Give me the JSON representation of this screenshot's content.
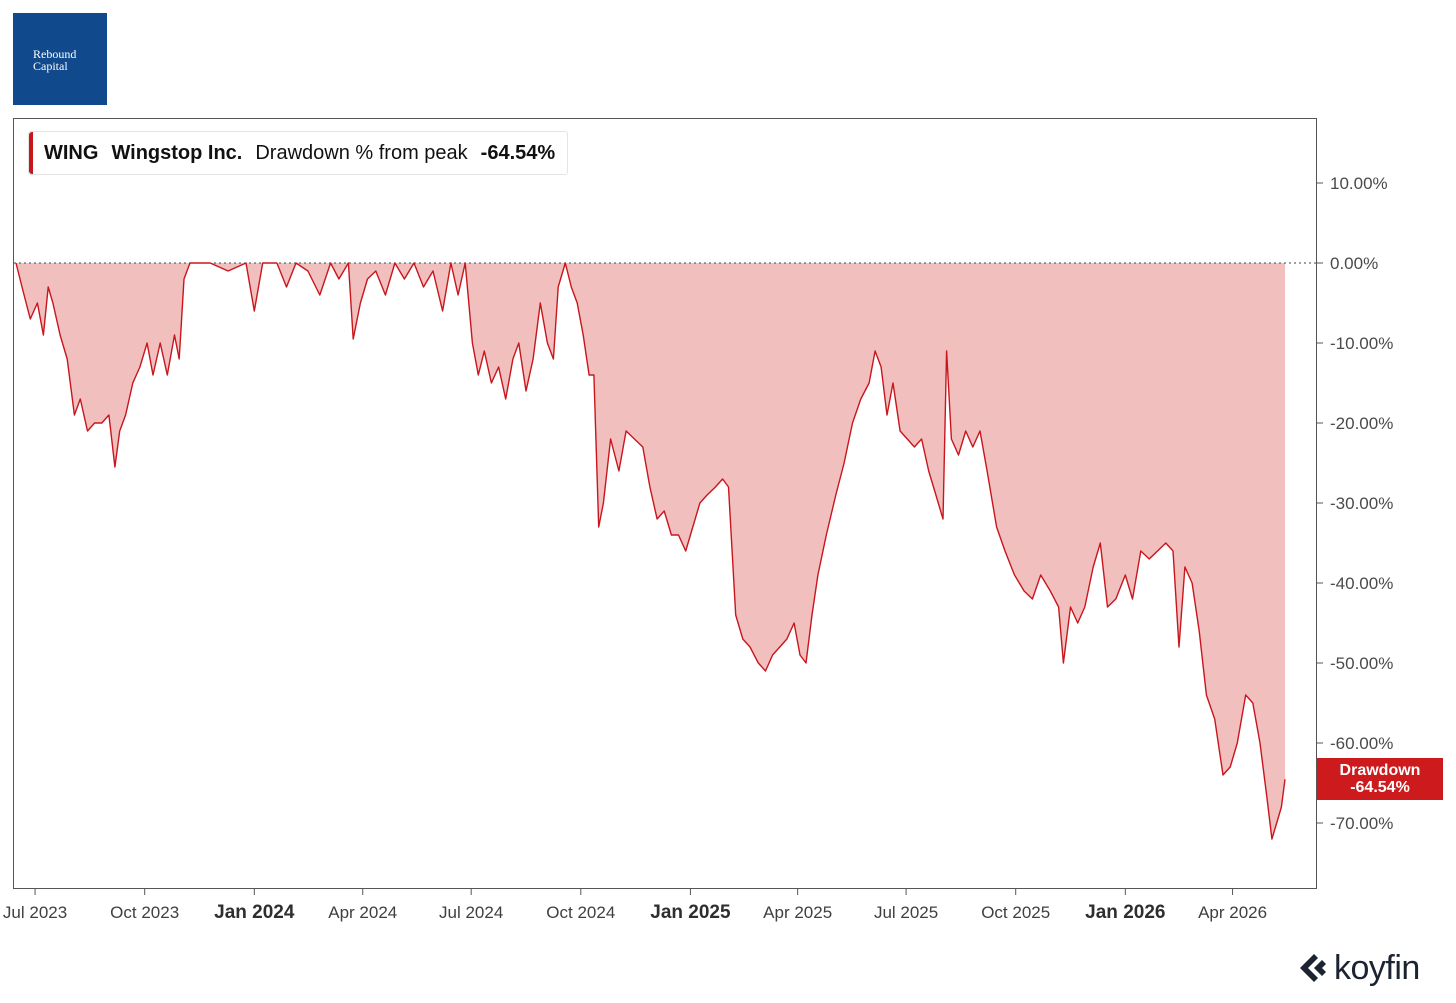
{
  "logo": {
    "line1": "Rebound",
    "line2": "Capital",
    "color": "#114a8c"
  },
  "legend": {
    "ticker": "WING",
    "name": "Wingstop Inc.",
    "metric": "Drawdown % from peak",
    "value": "-64.54%"
  },
  "last_tag": {
    "label": "Drawdown",
    "value": "-64.54%"
  },
  "brand": {
    "name": "koyfin",
    "icon": "koyfin-logo-icon"
  },
  "colors": {
    "line": "#c8161d",
    "fill": "#f2bfbf",
    "tag": "#cc1a1d"
  },
  "chart_data": {
    "type": "area",
    "series": [
      {
        "name": "Drawdown % from peak",
        "color": "#c8161d"
      }
    ],
    "x_start": "2023-06-15",
    "x_end": "2026-05-15",
    "ylim": [
      -78,
      17
    ],
    "yticks": [
      10,
      0,
      -10,
      -20,
      -30,
      -40,
      -50,
      -60,
      -70
    ],
    "ytick_labels": [
      "10.00%",
      "0.00%",
      "-10.00%",
      "-20.00%",
      "-30.00%",
      "-40.00%",
      "-50.00%",
      "-60.00%",
      "-70.00%"
    ],
    "xticks": [
      {
        "date": "2023-07-01",
        "label": "Jul 2023",
        "bold": false
      },
      {
        "date": "2023-10-01",
        "label": "Oct 2023",
        "bold": false
      },
      {
        "date": "2024-01-01",
        "label": "Jan 2024",
        "bold": true
      },
      {
        "date": "2024-04-01",
        "label": "Apr 2024",
        "bold": false
      },
      {
        "date": "2024-07-01",
        "label": "Jul 2024",
        "bold": false
      },
      {
        "date": "2024-10-01",
        "label": "Oct 2024",
        "bold": false
      },
      {
        "date": "2025-01-01",
        "label": "Jan 2025",
        "bold": true
      },
      {
        "date": "2025-04-01",
        "label": "Apr 2025",
        "bold": false
      },
      {
        "date": "2025-07-01",
        "label": "Jul 2025",
        "bold": false
      },
      {
        "date": "2025-10-01",
        "label": "Oct 2025",
        "bold": false
      },
      {
        "date": "2026-01-01",
        "label": "Jan 2026",
        "bold": true
      },
      {
        "date": "2026-04-01",
        "label": "Apr 2026",
        "bold": false
      }
    ],
    "reference_line": 0,
    "points": [
      [
        "2023-06-15",
        0
      ],
      [
        "2023-06-20",
        -3
      ],
      [
        "2023-06-27",
        -7
      ],
      [
        "2023-07-03",
        -5
      ],
      [
        "2023-07-08",
        -9
      ],
      [
        "2023-07-12",
        -3
      ],
      [
        "2023-07-16",
        -5
      ],
      [
        "2023-07-22",
        -9
      ],
      [
        "2023-07-28",
        -12
      ],
      [
        "2023-08-03",
        -19
      ],
      [
        "2023-08-08",
        -17
      ],
      [
        "2023-08-14",
        -21
      ],
      [
        "2023-08-20",
        -20
      ],
      [
        "2023-08-26",
        -20
      ],
      [
        "2023-09-01",
        -19
      ],
      [
        "2023-09-06",
        -25.5
      ],
      [
        "2023-09-10",
        -21
      ],
      [
        "2023-09-15",
        -19
      ],
      [
        "2023-09-21",
        -15
      ],
      [
        "2023-09-27",
        -13
      ],
      [
        "2023-10-03",
        -10
      ],
      [
        "2023-10-08",
        -14
      ],
      [
        "2023-10-14",
        -10
      ],
      [
        "2023-10-20",
        -14
      ],
      [
        "2023-10-26",
        -9
      ],
      [
        "2023-10-30",
        -12
      ],
      [
        "2023-11-03",
        -2
      ],
      [
        "2023-11-08",
        0
      ],
      [
        "2023-11-25",
        0
      ],
      [
        "2023-12-10",
        -1
      ],
      [
        "2023-12-25",
        0
      ],
      [
        "2024-01-01",
        -6
      ],
      [
        "2024-01-08",
        0
      ],
      [
        "2024-01-20",
        0
      ],
      [
        "2024-01-28",
        -3
      ],
      [
        "2024-02-05",
        0
      ],
      [
        "2024-02-15",
        -1
      ],
      [
        "2024-02-25",
        -4
      ],
      [
        "2024-03-05",
        0
      ],
      [
        "2024-03-12",
        -2
      ],
      [
        "2024-03-20",
        0
      ],
      [
        "2024-03-24",
        -9.5
      ],
      [
        "2024-03-30",
        -5
      ],
      [
        "2024-04-05",
        -2
      ],
      [
        "2024-04-12",
        -1
      ],
      [
        "2024-04-20",
        -4
      ],
      [
        "2024-04-28",
        0
      ],
      [
        "2024-05-06",
        -2
      ],
      [
        "2024-05-14",
        0
      ],
      [
        "2024-05-22",
        -3
      ],
      [
        "2024-05-30",
        -1
      ],
      [
        "2024-06-07",
        -6
      ],
      [
        "2024-06-14",
        0
      ],
      [
        "2024-06-20",
        -4
      ],
      [
        "2024-06-26",
        0
      ],
      [
        "2024-07-02",
        -10
      ],
      [
        "2024-07-07",
        -14
      ],
      [
        "2024-07-12",
        -11
      ],
      [
        "2024-07-18",
        -15
      ],
      [
        "2024-07-24",
        -13
      ],
      [
        "2024-07-30",
        -17
      ],
      [
        "2024-08-05",
        -12
      ],
      [
        "2024-08-10",
        -10
      ],
      [
        "2024-08-16",
        -16
      ],
      [
        "2024-08-22",
        -12
      ],
      [
        "2024-08-28",
        -5
      ],
      [
        "2024-09-03",
        -10
      ],
      [
        "2024-09-08",
        -12
      ],
      [
        "2024-09-12",
        -3
      ],
      [
        "2024-09-18",
        0
      ],
      [
        "2024-09-23",
        -3
      ],
      [
        "2024-09-28",
        -5
      ],
      [
        "2024-10-03",
        -9
      ],
      [
        "2024-10-08",
        -14
      ],
      [
        "2024-10-12",
        -14
      ],
      [
        "2024-10-16",
        -33
      ],
      [
        "2024-10-20",
        -30
      ],
      [
        "2024-10-26",
        -22
      ],
      [
        "2024-11-02",
        -26
      ],
      [
        "2024-11-08",
        -21
      ],
      [
        "2024-11-15",
        -22
      ],
      [
        "2024-11-22",
        -23
      ],
      [
        "2024-11-28",
        -28
      ],
      [
        "2024-12-04",
        -32
      ],
      [
        "2024-12-10",
        -31
      ],
      [
        "2024-12-16",
        -34
      ],
      [
        "2024-12-22",
        -34
      ],
      [
        "2024-12-28",
        -36
      ],
      [
        "2025-01-03",
        -33
      ],
      [
        "2025-01-09",
        -30
      ],
      [
        "2025-01-15",
        -29
      ],
      [
        "2025-01-22",
        -28
      ],
      [
        "2025-01-28",
        -27
      ],
      [
        "2025-02-02",
        -28
      ],
      [
        "2025-02-08",
        -44
      ],
      [
        "2025-02-14",
        -47
      ],
      [
        "2025-02-20",
        -48
      ],
      [
        "2025-02-27",
        -50
      ],
      [
        "2025-03-05",
        -51
      ],
      [
        "2025-03-11",
        -49
      ],
      [
        "2025-03-17",
        -48
      ],
      [
        "2025-03-23",
        -47
      ],
      [
        "2025-03-29",
        -45
      ],
      [
        "2025-04-03",
        -49
      ],
      [
        "2025-04-08",
        -50
      ],
      [
        "2025-04-13",
        -44
      ],
      [
        "2025-04-18",
        -39
      ],
      [
        "2025-04-25",
        -34
      ],
      [
        "2025-05-03",
        -29
      ],
      [
        "2025-05-10",
        -25
      ],
      [
        "2025-05-17",
        -20
      ],
      [
        "2025-05-24",
        -17
      ],
      [
        "2025-05-31",
        -15
      ],
      [
        "2025-06-05",
        -11
      ],
      [
        "2025-06-10",
        -13
      ],
      [
        "2025-06-15",
        -19
      ],
      [
        "2025-06-20",
        -15
      ],
      [
        "2025-06-26",
        -21
      ],
      [
        "2025-07-02",
        -22
      ],
      [
        "2025-07-08",
        -23
      ],
      [
        "2025-07-14",
        -22
      ],
      [
        "2025-07-20",
        -26
      ],
      [
        "2025-07-26",
        -29
      ],
      [
        "2025-08-01",
        -32
      ],
      [
        "2025-08-04",
        -11
      ],
      [
        "2025-08-08",
        -22
      ],
      [
        "2025-08-14",
        -24
      ],
      [
        "2025-08-20",
        -21
      ],
      [
        "2025-08-26",
        -23
      ],
      [
        "2025-09-01",
        -21
      ],
      [
        "2025-09-07",
        -26
      ],
      [
        "2025-09-15",
        -33
      ],
      [
        "2025-09-22",
        -36
      ],
      [
        "2025-09-30",
        -39
      ],
      [
        "2025-10-08",
        -41
      ],
      [
        "2025-10-15",
        -42
      ],
      [
        "2025-10-22",
        -39
      ],
      [
        "2025-10-30",
        -41
      ],
      [
        "2025-11-06",
        -43
      ],
      [
        "2025-11-10",
        -50
      ],
      [
        "2025-11-16",
        -43
      ],
      [
        "2025-11-22",
        -45
      ],
      [
        "2025-11-28",
        -43
      ],
      [
        "2025-12-05",
        -38
      ],
      [
        "2025-12-11",
        -35
      ],
      [
        "2025-12-17",
        -43
      ],
      [
        "2025-12-24",
        -42
      ],
      [
        "2026-01-01",
        -39
      ],
      [
        "2026-01-07",
        -42
      ],
      [
        "2026-01-14",
        -36
      ],
      [
        "2026-01-21",
        -37
      ],
      [
        "2026-01-28",
        -36
      ],
      [
        "2026-02-04",
        -35
      ],
      [
        "2026-02-10",
        -36
      ],
      [
        "2026-02-15",
        -48
      ],
      [
        "2026-02-20",
        -38
      ],
      [
        "2026-02-26",
        -40
      ],
      [
        "2026-03-04",
        -46
      ],
      [
        "2026-03-10",
        -54
      ],
      [
        "2026-03-17",
        -57
      ],
      [
        "2026-03-24",
        -64
      ],
      [
        "2026-03-30",
        -63
      ],
      [
        "2026-04-05",
        -60
      ],
      [
        "2026-04-12",
        -54
      ],
      [
        "2026-04-18",
        -55
      ],
      [
        "2026-04-24",
        -60
      ],
      [
        "2026-04-30",
        -67
      ],
      [
        "2026-05-04",
        -72
      ],
      [
        "2026-05-08",
        -70
      ],
      [
        "2026-05-12",
        -68
      ],
      [
        "2026-05-15",
        -64.54
      ]
    ]
  }
}
